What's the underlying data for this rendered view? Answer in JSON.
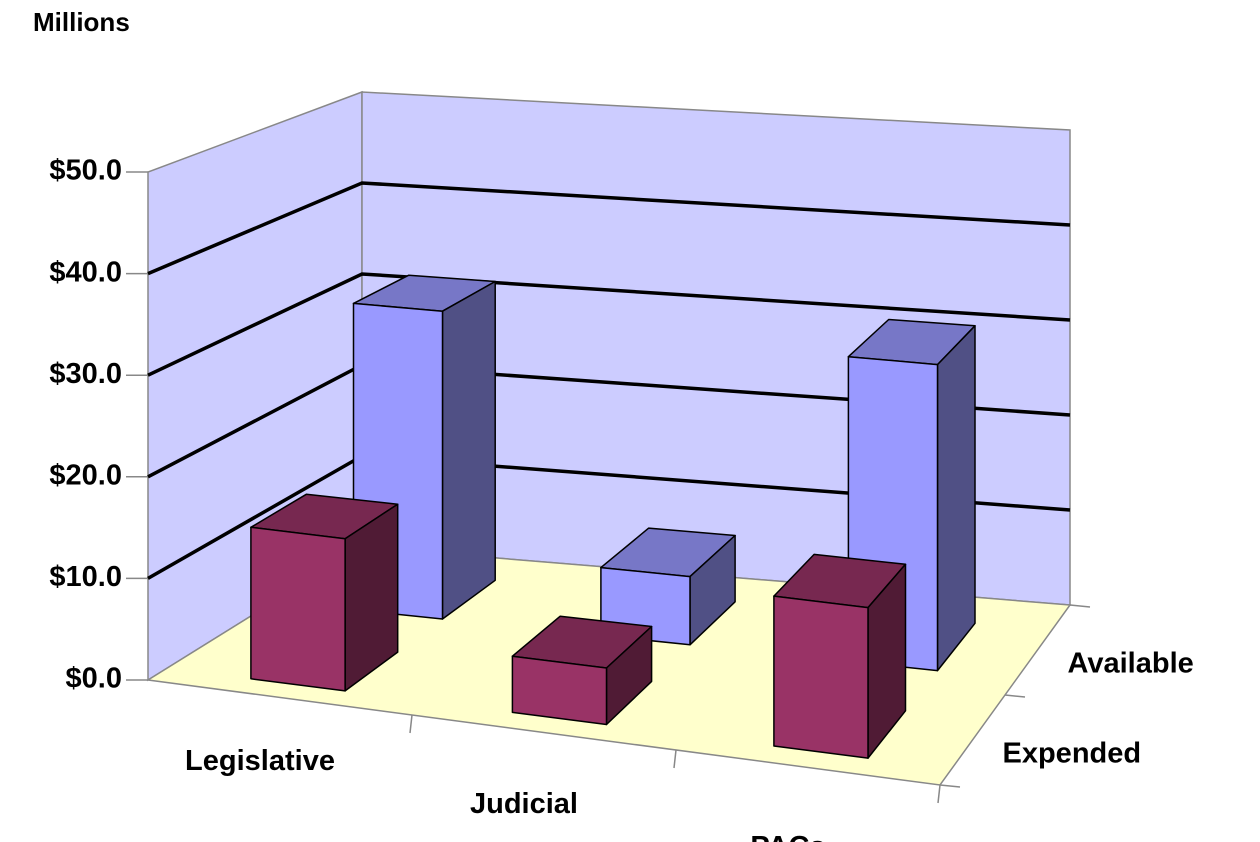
{
  "chart_data": {
    "type": "bar3d",
    "y_axis_label": "Millions",
    "categories": [
      "Legislative",
      "Judicial",
      "PACs"
    ],
    "series": [
      {
        "name": "Expended",
        "color": "#993366",
        "values": [
          15,
          5.5,
          14.5
        ]
      },
      {
        "name": "Available",
        "color": "#9999ff",
        "values": [
          32,
          7,
          31
        ]
      }
    ],
    "ylim": [
      0,
      50
    ],
    "yticks": [
      {
        "value": 0,
        "label": "$0.0"
      },
      {
        "value": 10,
        "label": "$10.0"
      },
      {
        "value": 20,
        "label": "$20.0"
      },
      {
        "value": 30,
        "label": "$30.0"
      },
      {
        "value": 40,
        "label": "$40.0"
      },
      {
        "value": 50,
        "label": "$50.0"
      }
    ],
    "grid": true,
    "wall_color": "#ccccff",
    "floor_color": "#ffffcc"
  }
}
